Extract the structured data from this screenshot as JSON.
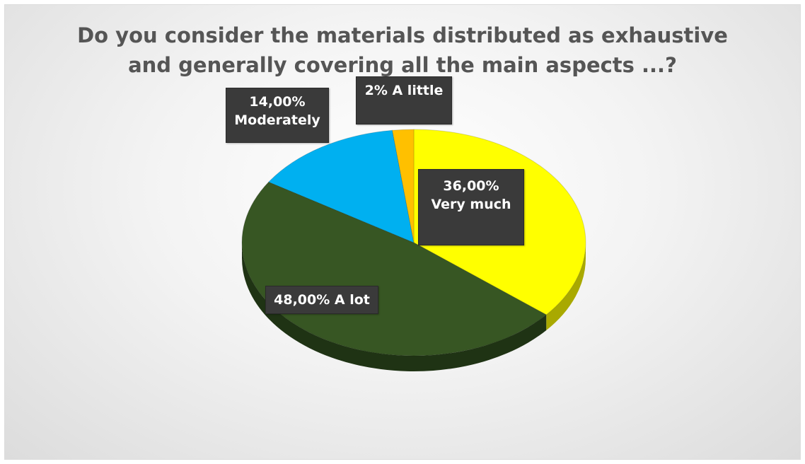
{
  "chart_data": {
    "type": "pie",
    "title": "Do you consider the materials distributed as exhaustive\nand generally covering all the main aspects ...?",
    "slices": [
      {
        "name": "Very much",
        "value": 36,
        "label": "36,00% Very much",
        "color": "#ffff00",
        "side_color": "#a9a900"
      },
      {
        "name": "A lot",
        "value": 48,
        "label": "48,00% A lot",
        "color": "#375623",
        "side_color": "#1f3314"
      },
      {
        "name": "Moderately",
        "value": 14,
        "label": "14,00%\nModerately",
        "color": "#00b0f0",
        "side_color": "#007aa8"
      },
      {
        "name": "A little",
        "value": 2,
        "label": "2% A  little",
        "color": "#ffc000",
        "side_color": "#b38600"
      }
    ]
  }
}
